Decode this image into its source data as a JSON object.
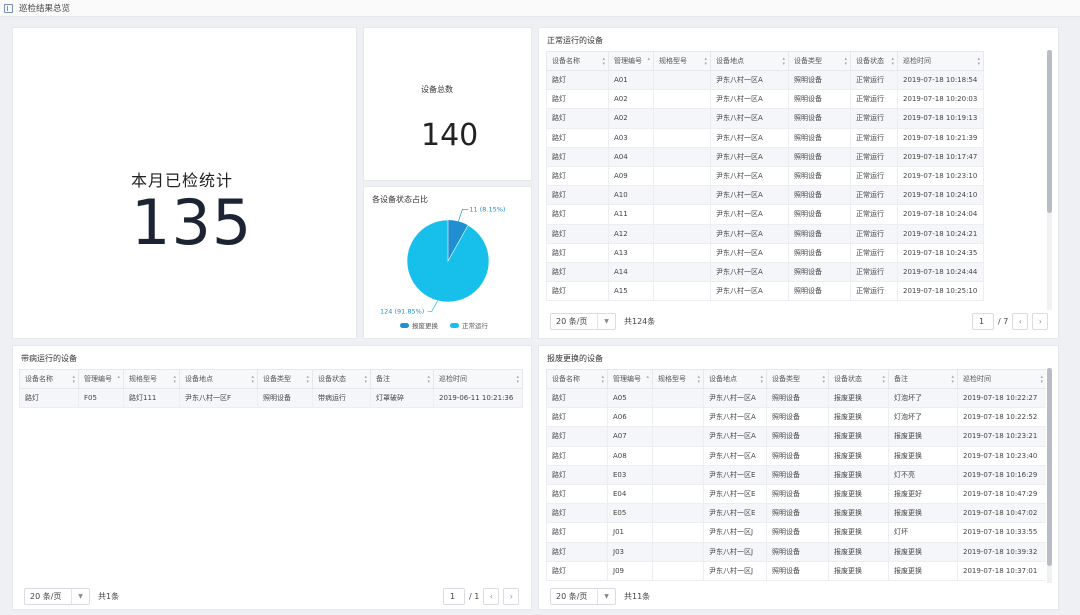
{
  "window": {
    "title": "巡检结果总览"
  },
  "month_stat": {
    "label": "本月已检统计",
    "value": "135"
  },
  "total_stat": {
    "label": "设备总数",
    "value": "140"
  },
  "pie": {
    "title": "各设备状态占比",
    "colors": {
      "scrap": "#1f8fd1",
      "normal": "#17c0ea"
    },
    "slices": [
      {
        "name": "报废更换",
        "value": 11,
        "label": "11 (8.15%)"
      },
      {
        "name": "正常运行",
        "value": 124,
        "label": "124 (91.85%)"
      }
    ]
  },
  "headers_a": [
    "设备名称",
    "管理编号",
    "规格型号",
    "设备地点",
    "设备类型",
    "设备状态",
    "巡检时间"
  ],
  "headers_b": [
    "设备名称",
    "管理编号",
    "规格型号",
    "设备地点",
    "设备类型",
    "设备状态",
    "备注",
    "巡检时间"
  ],
  "normal_table": {
    "title": "正常运行的设备",
    "rows": [
      [
        "路灯",
        "A01",
        "",
        "尹东八村一区A",
        "照明设备",
        "正常运行",
        "2019-07-18 10:18:54"
      ],
      [
        "路灯",
        "A02",
        "",
        "尹东八村一区A",
        "照明设备",
        "正常运行",
        "2019-07-18 10:20:03"
      ],
      [
        "路灯",
        "A02",
        "",
        "尹东八村一区A",
        "照明设备",
        "正常运行",
        "2019-07-18 10:19:13"
      ],
      [
        "路灯",
        "A03",
        "",
        "尹东八村一区A",
        "照明设备",
        "正常运行",
        "2019-07-18 10:21:39"
      ],
      [
        "路灯",
        "A04",
        "",
        "尹东八村一区A",
        "照明设备",
        "正常运行",
        "2019-07-18 10:17:47"
      ],
      [
        "路灯",
        "A09",
        "",
        "尹东八村一区A",
        "照明设备",
        "正常运行",
        "2019-07-18 10:23:10"
      ],
      [
        "路灯",
        "A10",
        "",
        "尹东八村一区A",
        "照明设备",
        "正常运行",
        "2019-07-18 10:24:10"
      ],
      [
        "路灯",
        "A11",
        "",
        "尹东八村一区A",
        "照明设备",
        "正常运行",
        "2019-07-18 10:24:04"
      ],
      [
        "路灯",
        "A12",
        "",
        "尹东八村一区A",
        "照明设备",
        "正常运行",
        "2019-07-18 10:24:21"
      ],
      [
        "路灯",
        "A13",
        "",
        "尹东八村一区A",
        "照明设备",
        "正常运行",
        "2019-07-18 10:24:35"
      ],
      [
        "路灯",
        "A14",
        "",
        "尹东八村一区A",
        "照明设备",
        "正常运行",
        "2019-07-18 10:24:44"
      ],
      [
        "路灯",
        "A15",
        "",
        "尹东八村一区A",
        "照明设备",
        "正常运行",
        "2019-07-18 10:25:10"
      ]
    ],
    "page_size": "20 条/页",
    "total": "共124条",
    "page": "1",
    "pages": "/ 7"
  },
  "faulty_table": {
    "title": "带病运行的设备",
    "rows": [
      [
        "路灯",
        "F05",
        "路灯111",
        "尹东八村一区F",
        "照明设备",
        "带病运行",
        "灯罩破碎",
        "2019-06-11 10:21:36"
      ]
    ],
    "page_size": "20 条/页",
    "total": "共1条",
    "page": "1",
    "pages": "/ 1"
  },
  "scrap_table": {
    "title": "报废更换的设备",
    "rows": [
      [
        "路灯",
        "A05",
        "",
        "尹东八村一区A",
        "照明设备",
        "报废更换",
        "灯泡坏了",
        "2019-07-18 10:22:27"
      ],
      [
        "路灯",
        "A06",
        "",
        "尹东八村一区A",
        "照明设备",
        "报废更换",
        "灯泡坏了",
        "2019-07-18 10:22:52"
      ],
      [
        "路灯",
        "A07",
        "",
        "尹东八村一区A",
        "照明设备",
        "报废更换",
        "报废更换",
        "2019-07-18 10:23:21"
      ],
      [
        "路灯",
        "A08",
        "",
        "尹东八村一区A",
        "照明设备",
        "报废更换",
        "报废更换",
        "2019-07-18 10:23:40"
      ],
      [
        "路灯",
        "E03",
        "",
        "尹东八村一区E",
        "照明设备",
        "报废更换",
        "灯不亮",
        "2019-07-18 10:16:29"
      ],
      [
        "路灯",
        "E04",
        "",
        "尹东八村一区E",
        "照明设备",
        "报废更换",
        "报废更好",
        "2019-07-18 10:47:29"
      ],
      [
        "路灯",
        "E05",
        "",
        "尹东八村一区E",
        "照明设备",
        "报废更换",
        "报废更换",
        "2019-07-18 10:47:02"
      ],
      [
        "路灯",
        "J01",
        "",
        "尹东八村一区J",
        "照明设备",
        "报废更换",
        "灯坏",
        "2019-07-18 10:33:55"
      ],
      [
        "路灯",
        "J03",
        "",
        "尹东八村一区J",
        "照明设备",
        "报废更换",
        "报废更换",
        "2019-07-18 10:39:32"
      ],
      [
        "路灯",
        "J09",
        "",
        "尹东八村一区J",
        "照明设备",
        "报废更换",
        "报废更换",
        "2019-07-18 10:37:01"
      ]
    ],
    "page_size": "20 条/页",
    "total": "共11条"
  }
}
